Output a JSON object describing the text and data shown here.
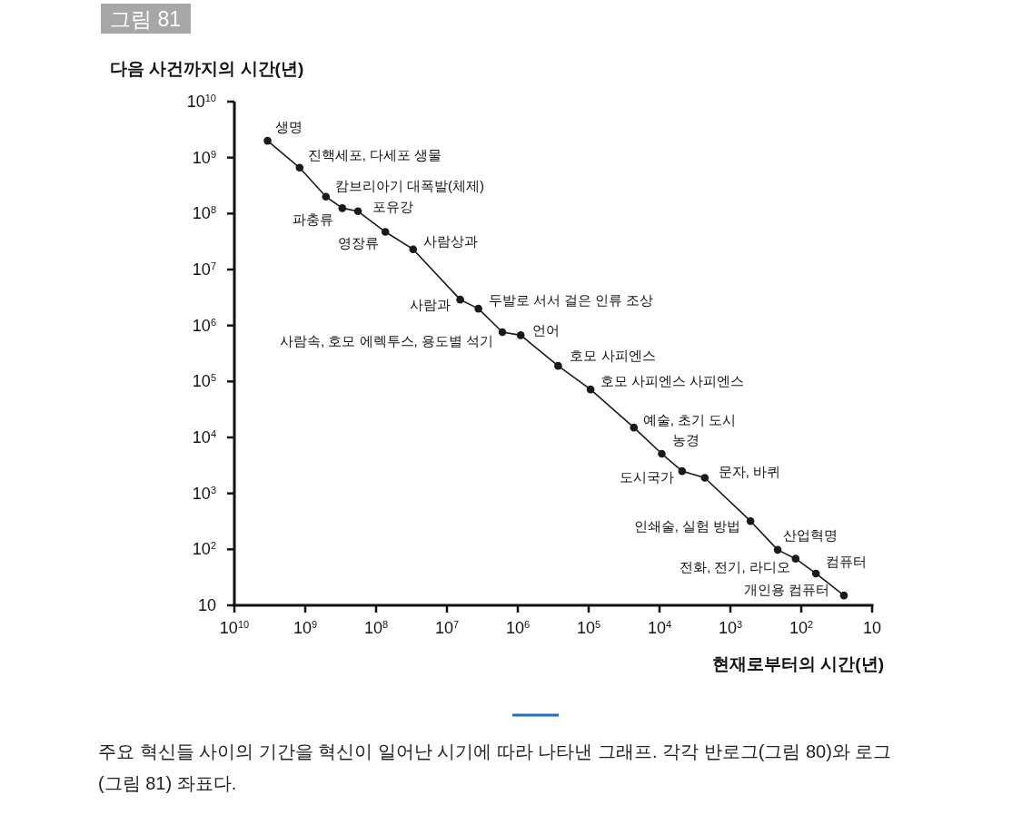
{
  "chart_data": {
    "type": "line",
    "title": "그림 81",
    "ylabel": "다음 사건까지의 시간(년)",
    "xlabel": "현재로부터의 시간(년)",
    "log": "xy",
    "xlim": [
      10000000000,
      10
    ],
    "ylim": [
      10,
      10000000000
    ],
    "grid": false,
    "marker": "circle",
    "line_style": "solid",
    "xticks": [
      {
        "value": 10000000000,
        "label": "10$^{10}$"
      },
      {
        "value": 1000000000,
        "label": "10$^{9}$"
      },
      {
        "value": 100000000,
        "label": "10$^{8}$"
      },
      {
        "value": 10000000,
        "label": "10$^{7}$"
      },
      {
        "value": 1000000,
        "label": "10$^{6}$"
      },
      {
        "value": 100000,
        "label": "10$^{5}$"
      },
      {
        "value": 10000,
        "label": "10$^{4}$"
      },
      {
        "value": 1000,
        "label": "10$^{3}$"
      },
      {
        "value": 100,
        "label": "10$^{2}$"
      },
      10
    ],
    "yticks": [
      10,
      {
        "value": 100,
        "label": "10$^{2}$"
      },
      {
        "value": 1000,
        "label": "10$^{3}$"
      },
      {
        "value": 10000,
        "label": "10$^{4}$"
      },
      {
        "value": 100000,
        "label": "10$^{5}$"
      },
      {
        "value": 1000000,
        "label": "10$^{6}$"
      },
      {
        "value": 10000000,
        "label": "10$^{7}$"
      },
      {
        "value": 100000000,
        "label": "10$^{8}$"
      },
      {
        "value": 1000000000,
        "label": "10$^{9}$"
      },
      {
        "value": 10000000000,
        "label": "10$^{10}$"
      }
    ],
    "x": [
      3400000000,
      1200000000,
      510000000,
      300000000,
      180000000,
      74000000,
      30000000,
      6500000,
      3600000,
      1650000,
      910000,
      270000,
      94000,
      23000,
      9300,
      4800,
      2300,
      520,
      215,
      120,
      62,
      25
    ],
    "series": [
      {
        "color": "#1a1a1a",
        "values": [
          2000000000,
          660000000,
          200000000,
          125000000,
          110000000,
          47000000,
          23000000,
          2900000,
          2000000,
          760000,
          670000,
          190000,
          72000,
          15000,
          5100,
          2500,
          1900,
          320,
          98,
          68,
          37,
          15
        ]
      }
    ],
    "annotations": [
      {
        "text": "생명",
        "x": 3400000000,
        "y": 2000000000
      },
      {
        "text": "진핵세포, 다세포 생물",
        "x": 1200000000,
        "y": 660000000
      },
      {
        "text": "캄브리아기 대폭발(체제)",
        "x": 510000000,
        "y": 200000000
      },
      {
        "text": "파충류",
        "x": 300000000,
        "y": 125000000
      },
      {
        "text": "포유강",
        "x": 180000000,
        "y": 110000000
      },
      {
        "text": "영장류",
        "x": 74000000,
        "y": 47000000
      },
      {
        "text": "사람상과",
        "x": 30000000,
        "y": 23000000
      },
      {
        "text": "사람과",
        "x": 6500000,
        "y": 2900000
      },
      {
        "text": "두발로 서서 걸은 인류 조상",
        "x": 3600000,
        "y": 2000000
      },
      {
        "text": "사람속, 호모 에렉투스, 용도별 석기",
        "x": 1650000,
        "y": 760000
      },
      {
        "text": "언어",
        "x": 910000,
        "y": 670000
      },
      {
        "text": "호모 사피엔스",
        "x": 270000,
        "y": 190000
      },
      {
        "text": "호모 사피엔스 사피엔스",
        "x": 94000,
        "y": 72000
      },
      {
        "text": "예술, 초기 도시",
        "x": 23000,
        "y": 15000
      },
      {
        "text": "농경",
        "x": 9300,
        "y": 5100
      },
      {
        "text": "도시국가",
        "x": 4800,
        "y": 2500
      },
      {
        "text": "문자, 바퀴",
        "x": 2300,
        "y": 1900
      },
      {
        "text": "인쇄술, 실험 방법",
        "x": 520,
        "y": 320
      },
      {
        "text": "산업혁명",
        "x": 215,
        "y": 98
      },
      {
        "text": "전화, 전기, 라디오",
        "x": 120,
        "y": 68
      },
      {
        "text": "컴퓨터",
        "x": 62,
        "y": 37
      },
      {
        "text": "개인용 컴퓨터",
        "x": 25,
        "y": 15
      },
      "주요 혁신들 사이의 기간을 혁신이 일어난 시기에 따라 나타낸 그래프. 각각 반로그(그림 80)와 로그(그림 81) 좌표다."
    ]
  }
}
